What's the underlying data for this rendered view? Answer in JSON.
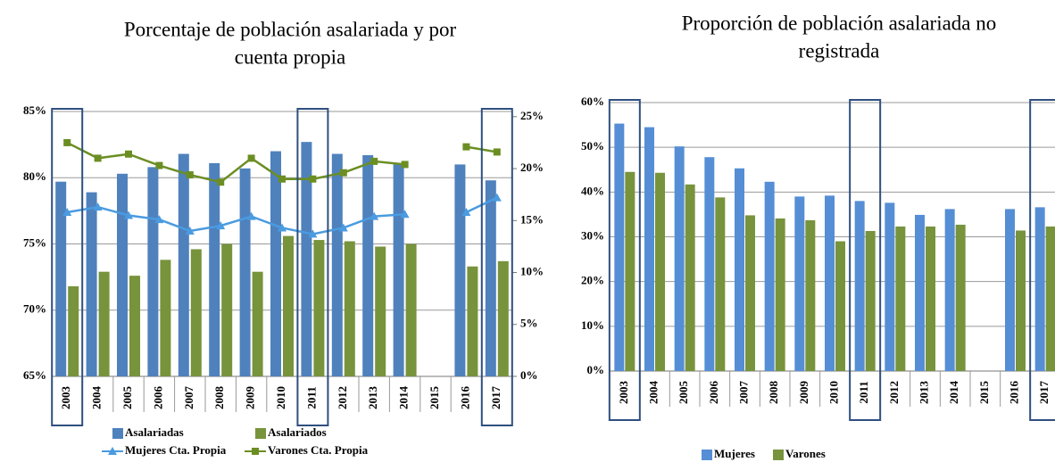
{
  "chart_data": [
    {
      "type": "bar",
      "title": [
        "Porcentaje de población asalariada y por",
        "cuenta propia"
      ],
      "categories": [
        "2003",
        "2004",
        "2005",
        "2006",
        "2007",
        "2008",
        "2009",
        "2010",
        "2011",
        "2012",
        "2013",
        "2014",
        "2015",
        "2016",
        "2017"
      ],
      "highlighted_categories": [
        "2003",
        "2011",
        "2017"
      ],
      "series": [
        {
          "name": "Asalariadas",
          "color": "#4f81bd",
          "values": [
            79.7,
            78.9,
            80.3,
            80.8,
            81.8,
            81.1,
            80.7,
            82.0,
            82.7,
            81.8,
            81.7,
            81.0,
            null,
            81.0,
            79.8
          ]
        },
        {
          "name": "Asalariados",
          "color": "#77933c",
          "values": [
            71.8,
            72.9,
            72.6,
            73.8,
            74.6,
            75.0,
            72.9,
            75.6,
            75.3,
            75.2,
            74.8,
            75.0,
            null,
            73.3,
            73.7
          ]
        },
        {
          "name": "Mujeres Cta. Propia",
          "type": "line",
          "axis": "y2",
          "marker": "triangle",
          "color": "#4a9be0",
          "values": [
            15.8,
            16.3,
            15.5,
            15.1,
            14.0,
            14.5,
            15.4,
            14.3,
            13.7,
            14.3,
            15.4,
            15.6,
            null,
            15.8,
            17.2
          ]
        },
        {
          "name": "Varones Cta. Propia",
          "type": "line",
          "axis": "y2",
          "marker": "square",
          "color": "#6b8e23",
          "values": [
            22.5,
            21.0,
            21.4,
            20.3,
            19.4,
            18.7,
            21.0,
            19.0,
            19.0,
            19.6,
            20.7,
            20.4,
            null,
            22.1,
            21.6
          ]
        }
      ],
      "ylim": [
        65,
        85
      ],
      "yticks": [
        {
          "value": 65,
          "label": "65%"
        },
        {
          "value": 70,
          "label": "70%"
        },
        {
          "value": 75,
          "label": "75%"
        },
        {
          "value": 80,
          "label": "80%"
        },
        {
          "value": 85,
          "label": "85%"
        }
      ],
      "y2lim": [
        0,
        25.5
      ],
      "y2ticks": [
        {
          "value": 0,
          "label": "0%"
        },
        {
          "value": 5,
          "label": "5%"
        },
        {
          "value": 10,
          "label": "10%"
        },
        {
          "value": 15,
          "label": "15%"
        },
        {
          "value": 20,
          "label": "20%"
        },
        {
          "value": 25,
          "label": "25%"
        }
      ],
      "grid": true
    },
    {
      "type": "bar",
      "title": [
        "Proporción de población asalariada no",
        "registrada"
      ],
      "categories": [
        "2003",
        "2004",
        "2005",
        "2006",
        "2007",
        "2008",
        "2009",
        "2010",
        "2011",
        "2012",
        "2013",
        "2014",
        "2015",
        "2016",
        "2017"
      ],
      "highlighted_categories": [
        "2003",
        "2011",
        "2017"
      ],
      "series": [
        {
          "name": "Mujeres",
          "color": "#558ed5",
          "values": [
            55.3,
            54.5,
            50.2,
            47.8,
            45.3,
            42.3,
            39.0,
            39.2,
            38.0,
            37.6,
            34.9,
            36.2,
            null,
            36.2,
            36.6
          ]
        },
        {
          "name": "Varones",
          "color": "#77933c",
          "values": [
            44.5,
            44.3,
            41.7,
            38.8,
            34.8,
            34.1,
            33.7,
            29.0,
            31.3,
            32.3,
            32.3,
            32.7,
            null,
            31.4,
            32.3
          ]
        }
      ],
      "ylim": [
        0,
        60
      ],
      "yticks": [
        {
          "value": 0,
          "label": "0%"
        },
        {
          "value": 10,
          "label": "10%"
        },
        {
          "value": 20,
          "label": "20%"
        },
        {
          "value": 30,
          "label": "30%"
        },
        {
          "value": 40,
          "label": "40%"
        },
        {
          "value": 50,
          "label": "50%"
        },
        {
          "value": 60,
          "label": "60%"
        }
      ],
      "grid": true
    }
  ]
}
